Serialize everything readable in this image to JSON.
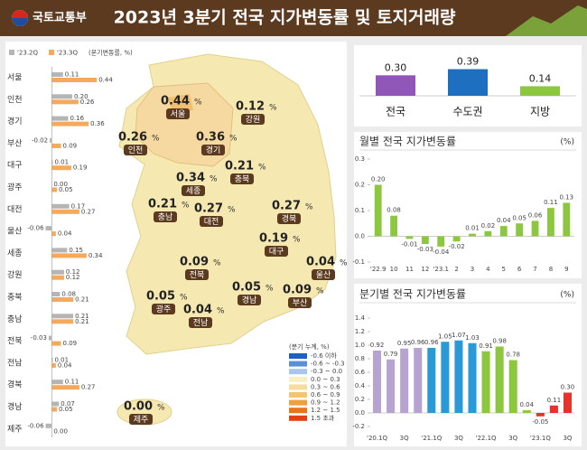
{
  "header": {
    "logo": "국토교통부",
    "title": "2023년 3분기 전국 지가변동률 및 토지거래량"
  },
  "chart_data": [
    {
      "type": "hbar",
      "unit": "(분기변동률, %)",
      "categories": [
        "서울",
        "인천",
        "경기",
        "부산",
        "대구",
        "광주",
        "대전",
        "울산",
        "세종",
        "강원",
        "충북",
        "충남",
        "전북",
        "전남",
        "경북",
        "경남",
        "제주"
      ],
      "series": [
        {
          "name": "'23.2Q",
          "color": "#b5b5b5",
          "values": [
            0.11,
            0.2,
            0.16,
            -0.02,
            0.01,
            0,
            0.17,
            -0.06,
            0.15,
            0.12,
            0.08,
            0.21,
            -0.03,
            0.01,
            0.11,
            0.07,
            -0.06
          ],
          "value_labels": [
            "0.11",
            "0.20",
            "0.16",
            "-0.02",
            "0.01",
            "0.00",
            "0.17",
            "-0.06",
            "0.15",
            "0.12",
            "0.08",
            "0.21",
            "-0.03",
            "0.01",
            "0.11",
            "0.07",
            "-0.06"
          ]
        },
        {
          "name": "'23.3Q",
          "color": "#f4a95c",
          "values": [
            0.44,
            0.26,
            0.36,
            0.09,
            0.19,
            0.05,
            0.27,
            0.04,
            0.34,
            0.12,
            0.21,
            0.21,
            0.09,
            0.04,
            0.27,
            0.05,
            0
          ],
          "value_labels": [
            "0.44",
            "0.26",
            "0.36",
            "0.09",
            "0.19",
            "0.05",
            "0.27",
            "0.04",
            "0.34",
            "0.12",
            "0.21",
            "0.21",
            "0.09",
            "0.04",
            "0.27",
            "0.05",
            "0.00"
          ]
        }
      ],
      "xlim": [
        -0.1,
        0.5
      ]
    },
    {
      "type": "bar",
      "categories": [
        "전국",
        "수도권",
        "지방"
      ],
      "values": [
        0.3,
        0.39,
        0.14
      ],
      "value_labels": [
        "0.30",
        "0.39",
        "0.14"
      ],
      "colors": [
        "#9157b8",
        "#1f6fc0",
        "#8dc63f"
      ],
      "ylim": [
        0,
        0.45
      ]
    },
    {
      "type": "bar",
      "title": "월별 전국 지가변동률",
      "unit": "(%)",
      "categories": [
        "'22.9",
        "10",
        "11",
        "12",
        "'23.1",
        "2",
        "3",
        "4",
        "5",
        "6",
        "7",
        "8",
        "9"
      ],
      "values": [
        0.2,
        0.08,
        -0.01,
        -0.03,
        -0.04,
        -0.02,
        0.01,
        0.02,
        0.04,
        0.05,
        0.06,
        0.11,
        0.13
      ],
      "value_labels": [
        "0.20",
        "0.08",
        "-0.01",
        "-0.03",
        "-0.04",
        "-0.02",
        "0.01",
        "0.02",
        "0.04",
        "0.05",
        "0.06",
        "0.11",
        "0.13"
      ],
      "color": "#8dc63f",
      "ylim": [
        -0.1,
        0.3
      ],
      "yticks": [
        -0.1,
        {
          "value": 0,
          "label": "0.0"
        },
        0.1,
        0.2,
        0.3
      ]
    },
    {
      "type": "bar",
      "title": "분기별 전국 지가변동률",
      "unit": "(%)",
      "categories": [
        "'20.1Q",
        null,
        "3Q",
        null,
        "'21.1Q",
        null,
        "3Q",
        null,
        "'22.1Q",
        null,
        "3Q",
        null,
        "'23.1Q",
        null,
        "3Q"
      ],
      "values": [
        0.92,
        0.79,
        0.95,
        0.96,
        0.96,
        1.05,
        1.07,
        1.03,
        0.91,
        0.98,
        0.78,
        0.04,
        -0.05,
        0.11,
        0.3
      ],
      "value_labels": [
        "0.92",
        "0.79",
        "0.95",
        "0.96",
        "0.96",
        "1.05",
        "1.07",
        "1.03",
        "0.91",
        "0.98",
        "0.78",
        "0.04",
        "-0.05",
        "0.11",
        "0.30"
      ],
      "colors": [
        "#b6a3cf",
        "#b6a3cf",
        "#b6a3cf",
        "#b6a3cf",
        "#2a9ad6",
        "#2a9ad6",
        "#2a9ad6",
        "#2a9ad6",
        "#8dc63f",
        "#8dc63f",
        "#8dc63f",
        "#8dc63f",
        "#e8312a",
        "#e8312a",
        "#e8312a"
      ],
      "ylim": [
        -0.2,
        1.4
      ],
      "yticks": [
        -0.2,
        {
          "value": 0,
          "label": "0.0"
        },
        0.2,
        0.4,
        0.6,
        0.8,
        {
          "value": 1,
          "label": "1.0"
        },
        1.2,
        1.4
      ]
    }
  ],
  "map": {
    "unit": "%",
    "regions": [
      {
        "name": "서울",
        "value": "0.44"
      },
      {
        "name": "인천",
        "value": "0.26"
      },
      {
        "name": "경기",
        "value": "0.36"
      },
      {
        "name": "강원",
        "value": "0.12"
      },
      {
        "name": "세종",
        "value": "0.34"
      },
      {
        "name": "충북",
        "value": "0.21"
      },
      {
        "name": "충남",
        "value": "0.21"
      },
      {
        "name": "대전",
        "value": "0.27"
      },
      {
        "name": "경북",
        "value": "0.27"
      },
      {
        "name": "대구",
        "value": "0.19"
      },
      {
        "name": "울산",
        "value": "0.04"
      },
      {
        "name": "전북",
        "value": "0.09"
      },
      {
        "name": "경남",
        "value": "0.05"
      },
      {
        "name": "부산",
        "value": "0.09"
      },
      {
        "name": "광주",
        "value": "0.05"
      },
      {
        "name": "전남",
        "value": "0.04"
      },
      {
        "name": "제주",
        "value": "0.00"
      }
    ],
    "legend_title": "(분기 누계, %)",
    "legend": [
      {
        "label": "-0.6 이하",
        "color": "#1e5fc2"
      },
      {
        "label": "-0.6 ~ -0.3",
        "color": "#5a8fd8"
      },
      {
        "label": "-0.3 ~ 0.0",
        "color": "#a9c6ee"
      },
      {
        "label": "0.0 ~ 0.3",
        "color": "#f7efc4"
      },
      {
        "label": "0.3 ~ 0.6",
        "color": "#f5dca0"
      },
      {
        "label": "0.6 ~ 0.9",
        "color": "#f2c570"
      },
      {
        "label": "0.9 ~ 1.2",
        "color": "#ef9f3e"
      },
      {
        "label": "1.2 ~ 1.5",
        "color": "#ea7220"
      },
      {
        "label": "1.5 초과",
        "color": "#e0401c"
      }
    ]
  }
}
